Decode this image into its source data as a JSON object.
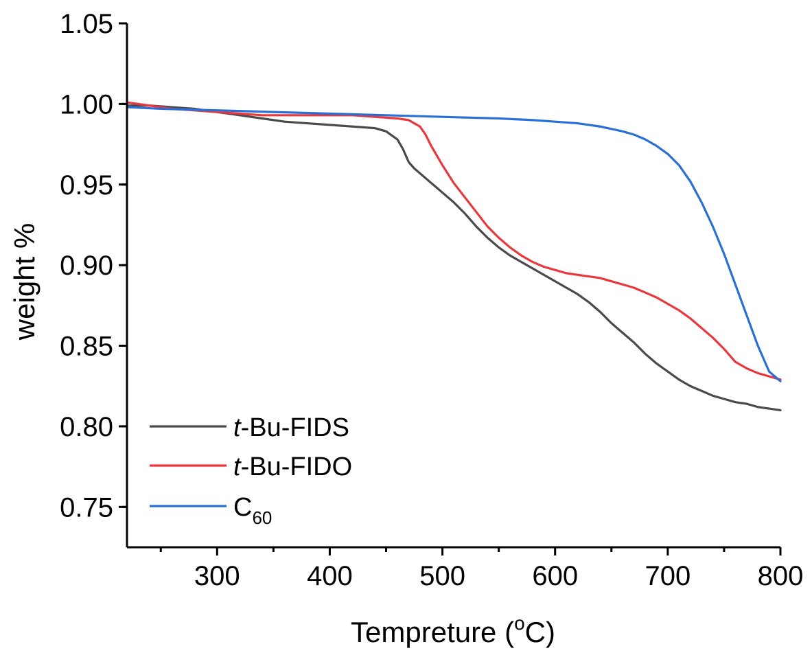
{
  "chart_data": {
    "type": "line",
    "xlabel_main": "Tempreture (",
    "xlabel_sup": "o",
    "xlabel_tail": "C)",
    "ylabel": "weight %",
    "xlim": [
      220,
      800
    ],
    "ylim": [
      0.725,
      1.05
    ],
    "xticks": [
      300,
      400,
      500,
      600,
      700,
      800
    ],
    "xtick_labels": [
      "300",
      "400",
      "500",
      "600",
      "700",
      "800"
    ],
    "yticks": [
      0.75,
      0.8,
      0.85,
      0.9,
      0.95,
      1.0,
      1.05
    ],
    "ytick_labels": [
      "0.75",
      "0.80",
      "0.85",
      "0.90",
      "0.95",
      "1.00",
      "1.05"
    ],
    "legend_position": "bottom-left",
    "series": [
      {
        "name_prefix": "t",
        "name_rest": "-Bu-FIDS",
        "color": "#4a4a4a",
        "x": [
          220,
          240,
          260,
          280,
          300,
          320,
          340,
          360,
          380,
          400,
          420,
          440,
          450,
          460,
          465,
          470,
          475,
          480,
          490,
          500,
          510,
          520,
          530,
          540,
          550,
          560,
          570,
          580,
          590,
          600,
          610,
          620,
          630,
          640,
          650,
          660,
          670,
          680,
          690,
          700,
          710,
          720,
          730,
          740,
          750,
          760,
          770,
          780,
          790,
          800
        ],
        "y": [
          0.999,
          0.999,
          0.998,
          0.997,
          0.995,
          0.993,
          0.991,
          0.989,
          0.988,
          0.987,
          0.986,
          0.985,
          0.983,
          0.978,
          0.972,
          0.964,
          0.96,
          0.957,
          0.951,
          0.945,
          0.939,
          0.932,
          0.924,
          0.917,
          0.911,
          0.906,
          0.902,
          0.898,
          0.894,
          0.89,
          0.886,
          0.882,
          0.877,
          0.871,
          0.864,
          0.858,
          0.852,
          0.845,
          0.839,
          0.834,
          0.829,
          0.825,
          0.822,
          0.819,
          0.817,
          0.815,
          0.814,
          0.812,
          0.811,
          0.81
        ]
      },
      {
        "name_prefix": "t",
        "name_rest": "-Bu-FIDO",
        "color": "#e8383d",
        "x": [
          220,
          240,
          260,
          280,
          300,
          320,
          340,
          360,
          380,
          400,
          420,
          440,
          460,
          470,
          475,
          480,
          485,
          490,
          500,
          510,
          520,
          530,
          540,
          550,
          560,
          570,
          580,
          590,
          600,
          610,
          620,
          630,
          640,
          650,
          660,
          670,
          680,
          690,
          700,
          710,
          720,
          730,
          740,
          750,
          760,
          770,
          780,
          790,
          800
        ],
        "y": [
          1.001,
          0.999,
          0.997,
          0.996,
          0.995,
          0.994,
          0.993,
          0.993,
          0.993,
          0.993,
          0.993,
          0.992,
          0.991,
          0.99,
          0.988,
          0.986,
          0.981,
          0.974,
          0.962,
          0.951,
          0.942,
          0.933,
          0.924,
          0.917,
          0.911,
          0.906,
          0.902,
          0.899,
          0.897,
          0.895,
          0.894,
          0.893,
          0.892,
          0.89,
          0.888,
          0.886,
          0.883,
          0.88,
          0.876,
          0.872,
          0.867,
          0.861,
          0.855,
          0.848,
          0.84,
          0.836,
          0.833,
          0.831,
          0.829
        ]
      },
      {
        "name_prefix": "",
        "name_rest": "C",
        "name_sub": "60",
        "color": "#2a6fd6",
        "x": [
          220,
          250,
          300,
          350,
          400,
          450,
          500,
          550,
          580,
          600,
          620,
          640,
          660,
          670,
          680,
          690,
          700,
          710,
          720,
          730,
          740,
          750,
          760,
          770,
          780,
          790,
          800
        ],
        "y": [
          0.998,
          0.997,
          0.996,
          0.995,
          0.994,
          0.993,
          0.992,
          0.991,
          0.99,
          0.989,
          0.988,
          0.986,
          0.983,
          0.981,
          0.978,
          0.974,
          0.969,
          0.962,
          0.952,
          0.939,
          0.924,
          0.907,
          0.888,
          0.869,
          0.85,
          0.834,
          0.828
        ]
      }
    ]
  }
}
